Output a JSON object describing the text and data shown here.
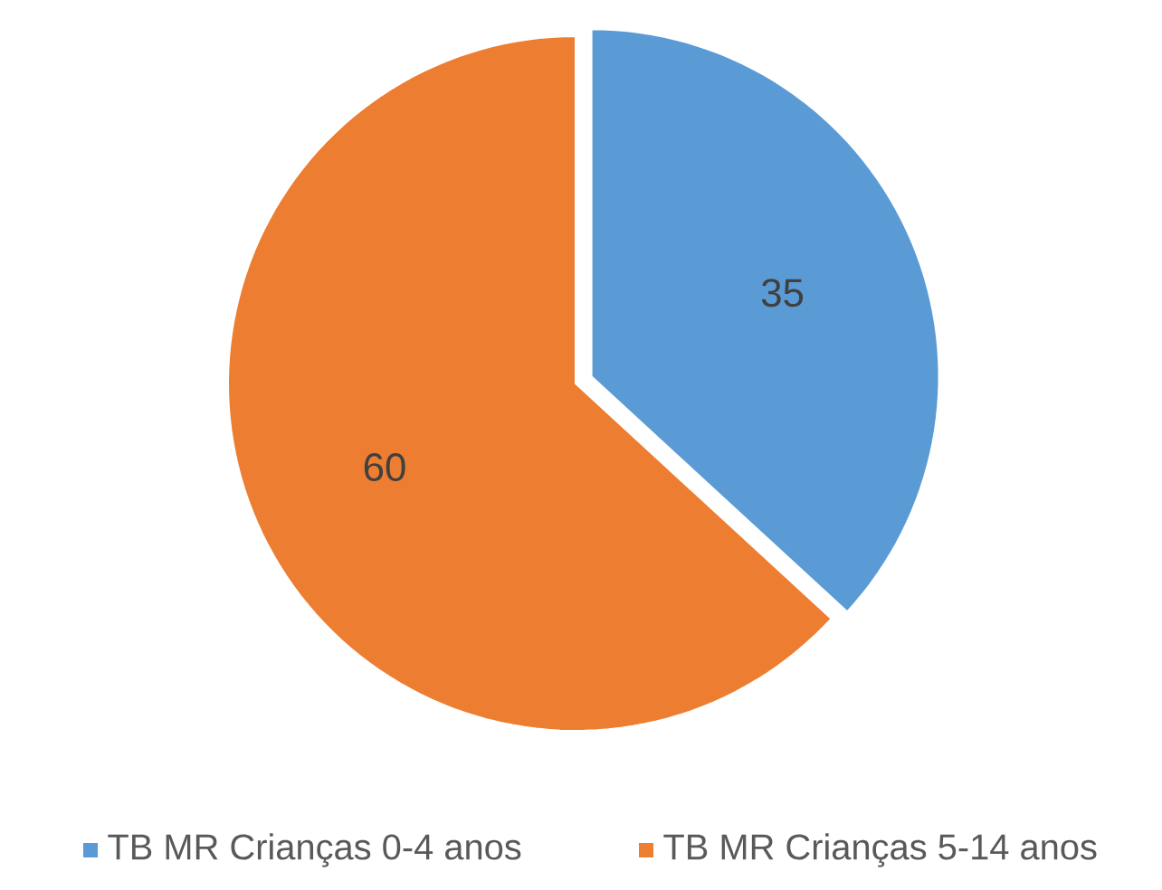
{
  "chart_data": {
    "type": "pie",
    "categories": [
      "TB MR Crianças 0-4 anos",
      "TB MR Crianças 5-14 anos"
    ],
    "values": [
      35,
      60
    ],
    "colors": [
      "#5b9bd5",
      "#ed7d31"
    ],
    "data_labels": true,
    "legend": "bottom"
  }
}
